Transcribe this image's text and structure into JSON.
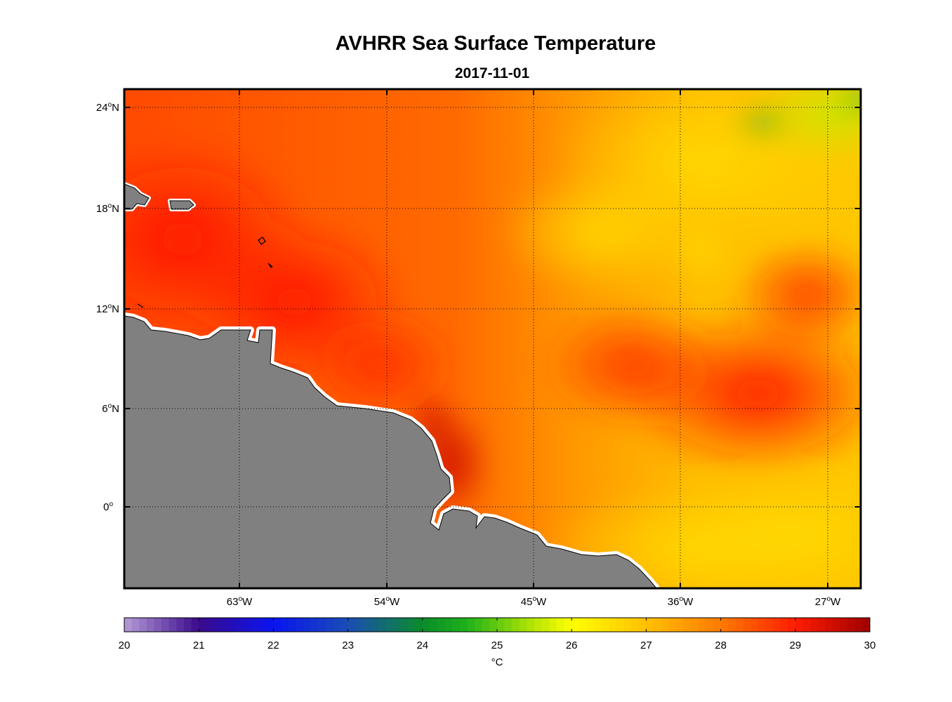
{
  "title": "AVHRR Sea Surface Temperature",
  "subtitle": "2017-11-01",
  "map": {
    "lat_ticks": [
      {
        "label": "24",
        "suffix": "N"
      },
      {
        "label": "18",
        "suffix": "N"
      },
      {
        "label": "12",
        "suffix": "N"
      },
      {
        "label": "6",
        "suffix": "N"
      },
      {
        "label": "0",
        "suffix": ""
      }
    ],
    "lon_ticks": [
      {
        "label": "63",
        "suffix": "W"
      },
      {
        "label": "54",
        "suffix": "W"
      },
      {
        "label": "45",
        "suffix": "W"
      },
      {
        "label": "36",
        "suffix": "W"
      },
      {
        "label": "27",
        "suffix": "W"
      }
    ],
    "degree_symbol": "o",
    "land_color": "#808080",
    "coast_fill_color": "#ffffff",
    "grid": "dotted"
  },
  "colorbar": {
    "min": 20,
    "max": 30,
    "tick_labels": [
      "20",
      "21",
      "22",
      "23",
      "24",
      "25",
      "26",
      "27",
      "28",
      "29",
      "30"
    ],
    "unit_label": "°C",
    "stops": [
      {
        "v": 20,
        "c": "#b59bd6"
      },
      {
        "v": 21,
        "c": "#3a0a8c"
      },
      {
        "v": 22,
        "c": "#0a14f0"
      },
      {
        "v": 23,
        "c": "#1a4db5"
      },
      {
        "v": 24,
        "c": "#0a8c2a"
      },
      {
        "v": 24.6,
        "c": "#1fb21a"
      },
      {
        "v": 25.5,
        "c": "#b8e600"
      },
      {
        "v": 26,
        "c": "#ffff00"
      },
      {
        "v": 27,
        "c": "#ffc000"
      },
      {
        "v": 28,
        "c": "#ff7a00"
      },
      {
        "v": 29,
        "c": "#ff1c00"
      },
      {
        "v": 30,
        "c": "#a00000"
      }
    ]
  }
}
